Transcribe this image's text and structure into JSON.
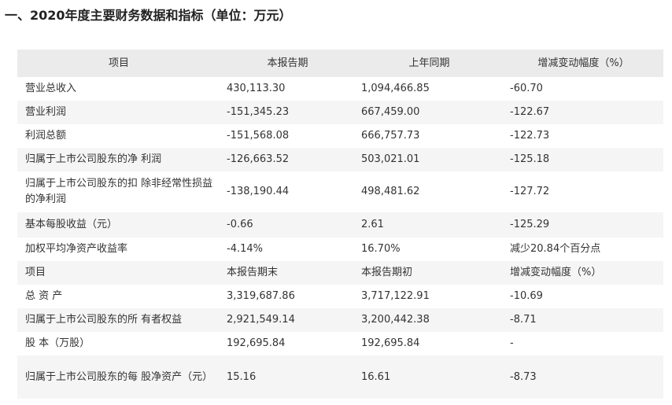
{
  "title": "一、2020年度主要财务数据和指标（单位：万元）",
  "table": {
    "header": [
      "项目",
      "本报告期",
      "上年同期",
      "增减变动幅度（%）"
    ],
    "rows": [
      [
        "营业总收入",
        "430,113.30",
        "1,094,466.85",
        "-60.70"
      ],
      [
        "营业利润",
        "-151,345.23",
        "667,459.00",
        "-122.67"
      ],
      [
        "利润总额",
        "-151,568.08",
        "666,757.73",
        "-122.73"
      ],
      [
        "归属于上市公司股东的净 利润",
        "-126,663.52",
        "503,021.01",
        "-125.18"
      ],
      [
        "归属于上市公司股东的扣 除非经常性损益的净利润",
        "-138,190.44",
        "498,481.62",
        "-127.72"
      ],
      [
        "基本每股收益（元）",
        "-0.66",
        "2.61",
        "-125.29"
      ],
      [
        "加权平均净资产收益率",
        "-4.14%",
        "16.70%",
        "减少20.84个百分点"
      ],
      [
        "项目",
        "本报告期末",
        "本报告期初",
        "增减变动幅度（%）"
      ],
      [
        "总 资 产",
        "3,319,687.86",
        "3,717,122.91",
        "-10.69"
      ],
      [
        "归属于上市公司股东的所 有者权益",
        "2,921,549.14",
        "3,200,442.38",
        "-8.71"
      ],
      [
        "股 本（万股）",
        "192,695.84",
        "192,695.84",
        "-"
      ],
      [
        "归属于上市公司股东的每 股净资产（元）",
        "15.16",
        "16.61",
        "-8.73"
      ]
    ]
  }
}
